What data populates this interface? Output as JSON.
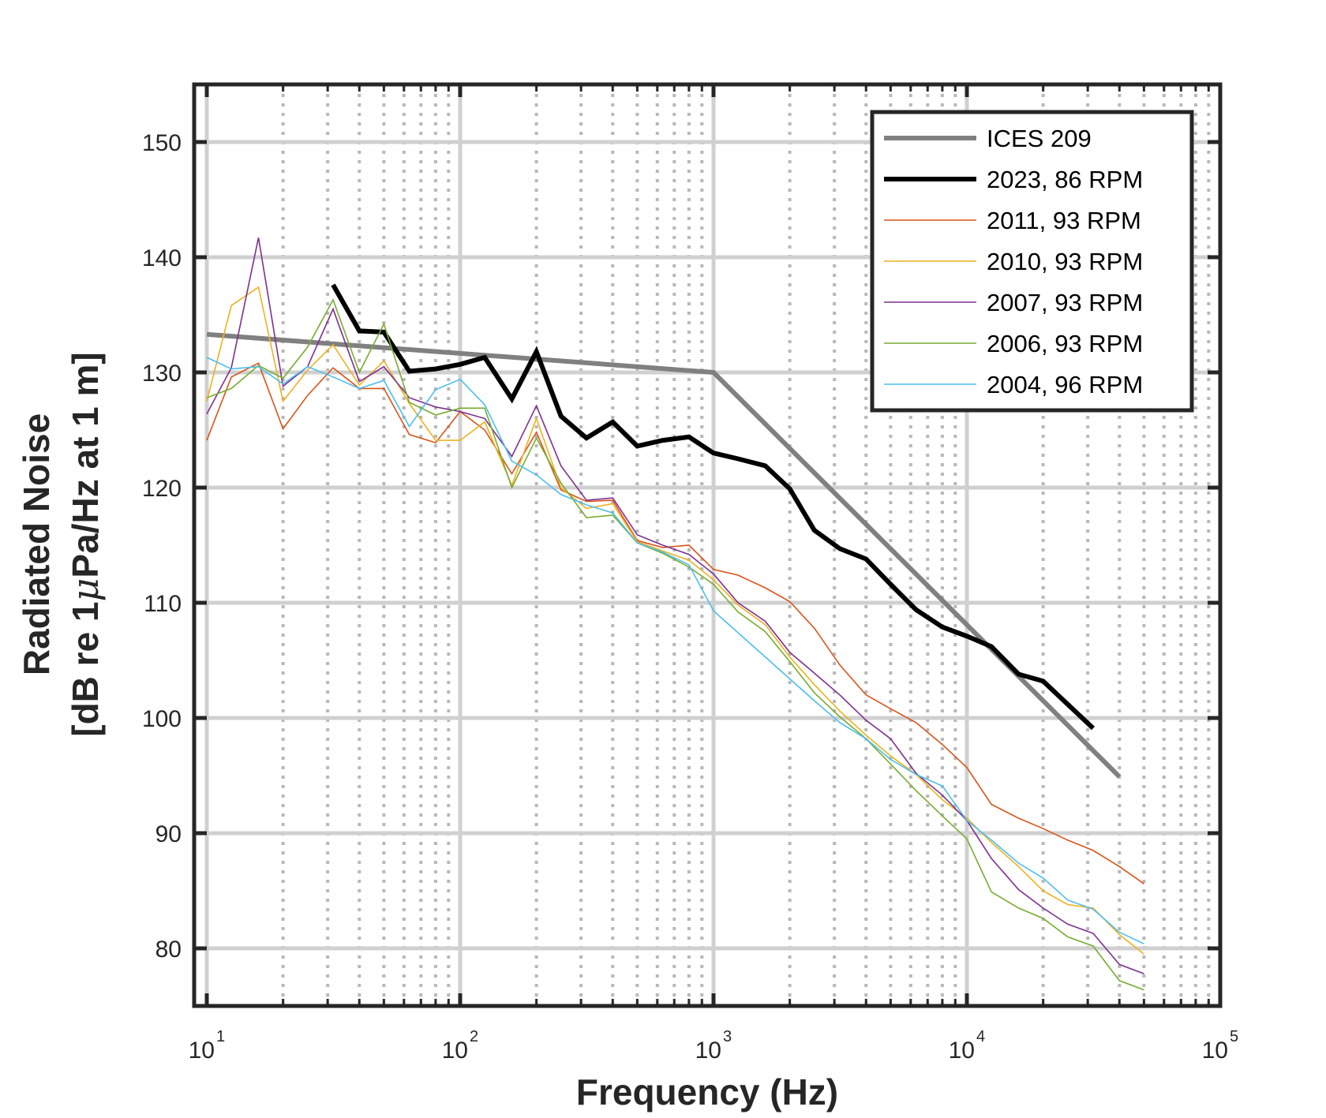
{
  "chart_data": {
    "type": "line",
    "xscale": "log",
    "xlim": [
      10,
      100000
    ],
    "ylim": [
      75,
      155
    ],
    "xlabel": "Frequency (Hz)",
    "ylabel_line1": "Radiated Noise",
    "ylabel_line2_before": "[dB re 1",
    "ylabel_mu": "μ",
    "ylabel_line2_after": "Pa/Hz at 1 m]",
    "grid": true,
    "legend_position": "top-right",
    "xticks": [
      {
        "value": 10,
        "base": "10",
        "exp": "1"
      },
      {
        "value": 100,
        "base": "10",
        "exp": "2"
      },
      {
        "value": 1000,
        "base": "10",
        "exp": "3"
      },
      {
        "value": 10000,
        "base": "10",
        "exp": "4"
      },
      {
        "value": 100000,
        "base": "10",
        "exp": "5"
      }
    ],
    "yticks": [
      {
        "value": 80,
        "label": "80"
      },
      {
        "value": 90,
        "label": "90"
      },
      {
        "value": 100,
        "label": "100"
      },
      {
        "value": 110,
        "label": "110"
      },
      {
        "value": 120,
        "label": "120"
      },
      {
        "value": 130,
        "label": "130"
      },
      {
        "value": 140,
        "label": "140"
      },
      {
        "value": 150,
        "label": "150"
      }
    ],
    "series": [
      {
        "name": "ICES 209",
        "color": "#808080",
        "x": [
          10,
          1000,
          40000
        ],
        "y": [
          133.3,
          130.0,
          94.9
        ]
      },
      {
        "name": "2023, 86 RPM",
        "color": "#000000",
        "x": [
          31.5,
          40,
          50,
          63,
          80,
          100,
          125,
          160,
          200,
          250,
          315,
          400,
          500,
          630,
          800,
          1000,
          1250,
          1600,
          2000,
          2500,
          3150,
          4000,
          5000,
          6300,
          8000,
          10000,
          12500,
          16000,
          20000,
          31500
        ],
        "y": [
          137.6,
          133.6,
          133.5,
          130.1,
          130.3,
          130.7,
          131.3,
          127.7,
          131.8,
          126.2,
          124.3,
          125.7,
          123.6,
          124.1,
          124.4,
          123.0,
          122.5,
          121.9,
          119.9,
          116.3,
          114.7,
          113.8,
          111.6,
          109.4,
          107.9,
          107.1,
          106.2,
          103.8,
          103.2,
          99.1
        ]
      },
      {
        "name": "2011, 93 RPM",
        "color": "#D95319",
        "x": [
          10,
          12.5,
          16,
          20,
          25,
          31.5,
          40,
          50,
          63,
          80,
          100,
          125,
          160,
          200,
          250,
          315,
          400,
          500,
          630,
          800,
          1000,
          1250,
          1600,
          2000,
          2500,
          3150,
          4000,
          5000,
          6300,
          8000,
          10000,
          12500,
          16000,
          20000,
          25000,
          31500,
          40000,
          50000
        ],
        "y": [
          124.1,
          129.6,
          130.8,
          125.1,
          128.0,
          130.4,
          128.6,
          128.6,
          124.6,
          123.9,
          126.6,
          125.0,
          121.2,
          124.8,
          119.8,
          118.8,
          118.9,
          115.4,
          114.8,
          115.0,
          112.9,
          112.4,
          111.3,
          110.1,
          107.8,
          104.6,
          102.0,
          100.8,
          99.6,
          97.7,
          95.7,
          92.5,
          91.3,
          90.4,
          89.4,
          88.5,
          87.1,
          85.6
        ]
      },
      {
        "name": "2010, 93 RPM",
        "color": "#EDB120",
        "x": [
          10,
          12.5,
          16,
          20,
          25,
          31.5,
          40,
          50,
          63,
          80,
          100,
          125,
          160,
          200,
          250,
          315,
          400,
          500,
          630,
          800,
          1000,
          1250,
          1600,
          2000,
          2500,
          3150,
          4000,
          5000,
          6300,
          8000,
          10000,
          12500,
          16000,
          20000,
          25000,
          31500,
          40000,
          50000
        ],
        "y": [
          127.5,
          135.8,
          137.4,
          127.5,
          130.2,
          132.4,
          128.9,
          131.0,
          127.3,
          124.1,
          124.1,
          125.7,
          120.2,
          126.0,
          120.0,
          118.2,
          118.6,
          115.3,
          114.5,
          113.7,
          112.0,
          109.8,
          108.1,
          105.3,
          102.9,
          100.6,
          98.5,
          96.7,
          95.1,
          92.9,
          91.3,
          89.2,
          87.1,
          85.0,
          83.8,
          83.5,
          81.2,
          79.5
        ]
      },
      {
        "name": "2007, 93 RPM",
        "color": "#7E2F8E",
        "x": [
          10,
          12.5,
          16,
          20,
          25,
          31.5,
          40,
          50,
          63,
          80,
          100,
          125,
          160,
          200,
          250,
          315,
          400,
          500,
          630,
          800,
          1000,
          1250,
          1600,
          2000,
          2500,
          3150,
          4000,
          5000,
          6300,
          8000,
          10000,
          12500,
          16000,
          20000,
          25000,
          31500,
          40000,
          50000
        ],
        "y": [
          126.4,
          130.4,
          141.7,
          128.8,
          130.5,
          135.5,
          129.2,
          130.5,
          127.8,
          127.0,
          126.6,
          126.0,
          122.7,
          127.1,
          121.9,
          118.9,
          119.1,
          115.9,
          115.0,
          114.2,
          112.5,
          110.0,
          108.4,
          105.7,
          103.9,
          102.0,
          99.8,
          98.2,
          95.2,
          93.3,
          91.1,
          87.8,
          85.1,
          83.5,
          82.1,
          81.3,
          78.6,
          77.8
        ]
      },
      {
        "name": "2006, 93 RPM",
        "color": "#77AC30",
        "x": [
          10,
          12.5,
          16,
          20,
          25,
          31.5,
          40,
          50,
          63,
          80,
          100,
          125,
          160,
          200,
          250,
          315,
          400,
          500,
          630,
          800,
          1000,
          1250,
          1600,
          2000,
          2500,
          3150,
          4000,
          5000,
          6300,
          8000,
          10000,
          12500,
          16000,
          20000,
          25000,
          31500,
          40000,
          50000
        ],
        "y": [
          127.8,
          128.6,
          130.6,
          129.5,
          132.2,
          136.3,
          130.0,
          134.2,
          127.4,
          126.3,
          126.9,
          126.9,
          120.0,
          124.3,
          120.4,
          117.4,
          117.6,
          115.2,
          114.3,
          113.1,
          111.6,
          109.2,
          107.5,
          104.9,
          102.2,
          100.1,
          98.2,
          96.0,
          93.7,
          91.5,
          89.5,
          84.9,
          83.5,
          82.6,
          81.0,
          80.2,
          77.2,
          76.4
        ]
      },
      {
        "name": "2004, 96 RPM",
        "color": "#4DBEEE",
        "x": [
          10,
          12.5,
          16,
          20,
          25,
          31.5,
          40,
          50,
          63,
          80,
          100,
          125,
          160,
          200,
          250,
          315,
          400,
          500,
          630,
          800,
          1000,
          1250,
          1600,
          2000,
          2500,
          3150,
          4000,
          5000,
          6300,
          8000,
          10000,
          12500,
          16000,
          20000,
          25000,
          31500,
          40000,
          50000
        ],
        "y": [
          131.3,
          130.3,
          130.5,
          129.0,
          130.5,
          129.6,
          128.6,
          129.3,
          125.3,
          128.5,
          129.4,
          127.2,
          122.3,
          121.1,
          119.4,
          118.5,
          117.8,
          115.2,
          114.4,
          113.3,
          109.3,
          107.4,
          105.3,
          103.4,
          101.5,
          99.6,
          98.2,
          96.4,
          95.1,
          94.1,
          91.1,
          89.4,
          87.4,
          86.1,
          84.2,
          83.4,
          81.4,
          80.4
        ]
      }
    ]
  }
}
